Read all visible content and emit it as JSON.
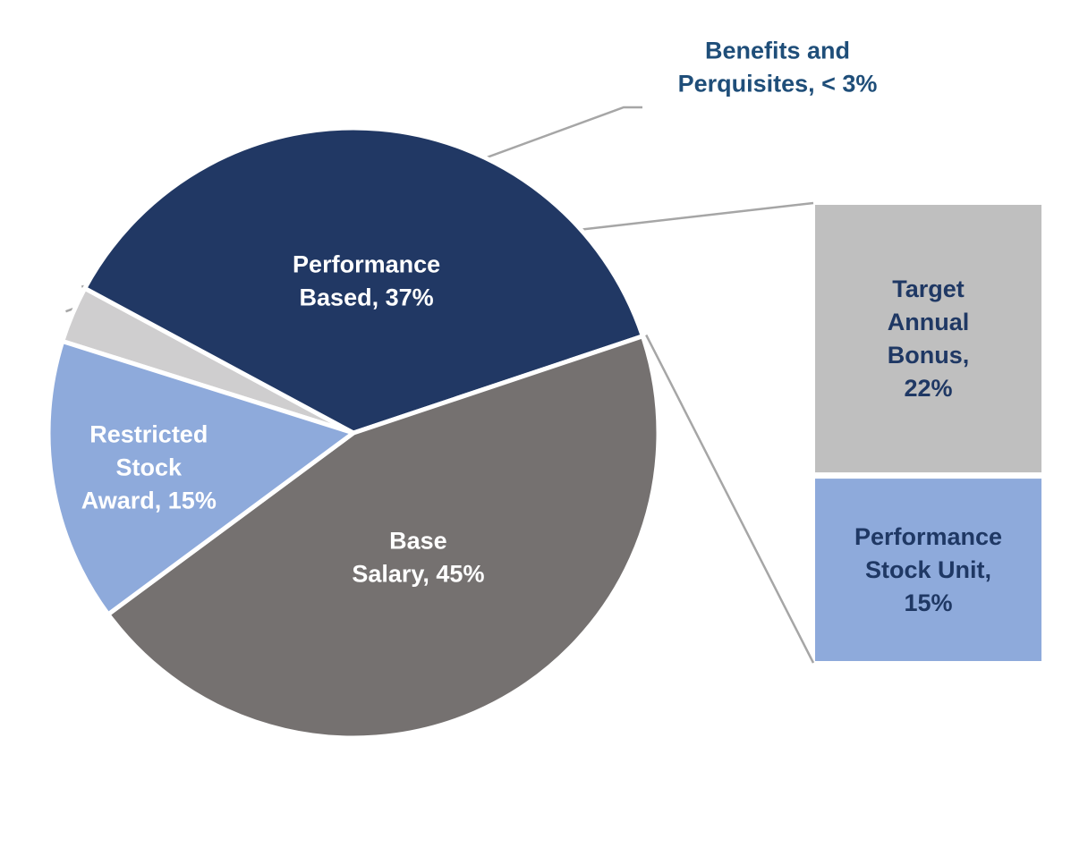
{
  "chart_data": {
    "type": "pie",
    "title": "",
    "slices": [
      {
        "id": "benefits",
        "label": "Benefits and Perquisites, < 3%",
        "label_lines": [
          "Benefits and",
          "Perquisites, < 3%"
        ],
        "value": 3,
        "color": "#cfcecf",
        "label_color": "#1f4e79",
        "label_position": "outside-top"
      },
      {
        "id": "performance",
        "label": "Performance Based, 37%",
        "label_lines": [
          "Performance",
          "Based, 37%"
        ],
        "value": 37,
        "color": "#213864",
        "label_color": "#ffffff",
        "label_position": "inside"
      },
      {
        "id": "base-salary",
        "label": "Base Salary, 45%",
        "label_lines": [
          "Base",
          "Salary, 45%"
        ],
        "value": 45,
        "color": "#757170",
        "label_color": "#ffffff",
        "label_position": "inside"
      },
      {
        "id": "restricted-stock",
        "label": "Restricted Stock Award, 15%",
        "label_lines": [
          "Restricted",
          "Stock",
          "Award, 15%"
        ],
        "value": 15,
        "color": "#8eaadb",
        "label_color": "#ffffff",
        "label_position": "inside"
      }
    ],
    "breakdown": {
      "of": "performance",
      "type": "stacked-bar",
      "segments": [
        {
          "id": "target-bonus",
          "label": "Target Annual Bonus, 22%",
          "label_lines": [
            "Target",
            "Annual",
            "Bonus,",
            "22%"
          ],
          "value": 22,
          "color": "#bfbfbf",
          "label_color": "#1f3864"
        },
        {
          "id": "psu",
          "label": "Performance Stock Unit, 15%",
          "label_lines": [
            "Performance",
            "Stock Unit,",
            "15%"
          ],
          "value": 15,
          "color": "#8eaadb",
          "label_color": "#1f3864"
        }
      ]
    }
  }
}
